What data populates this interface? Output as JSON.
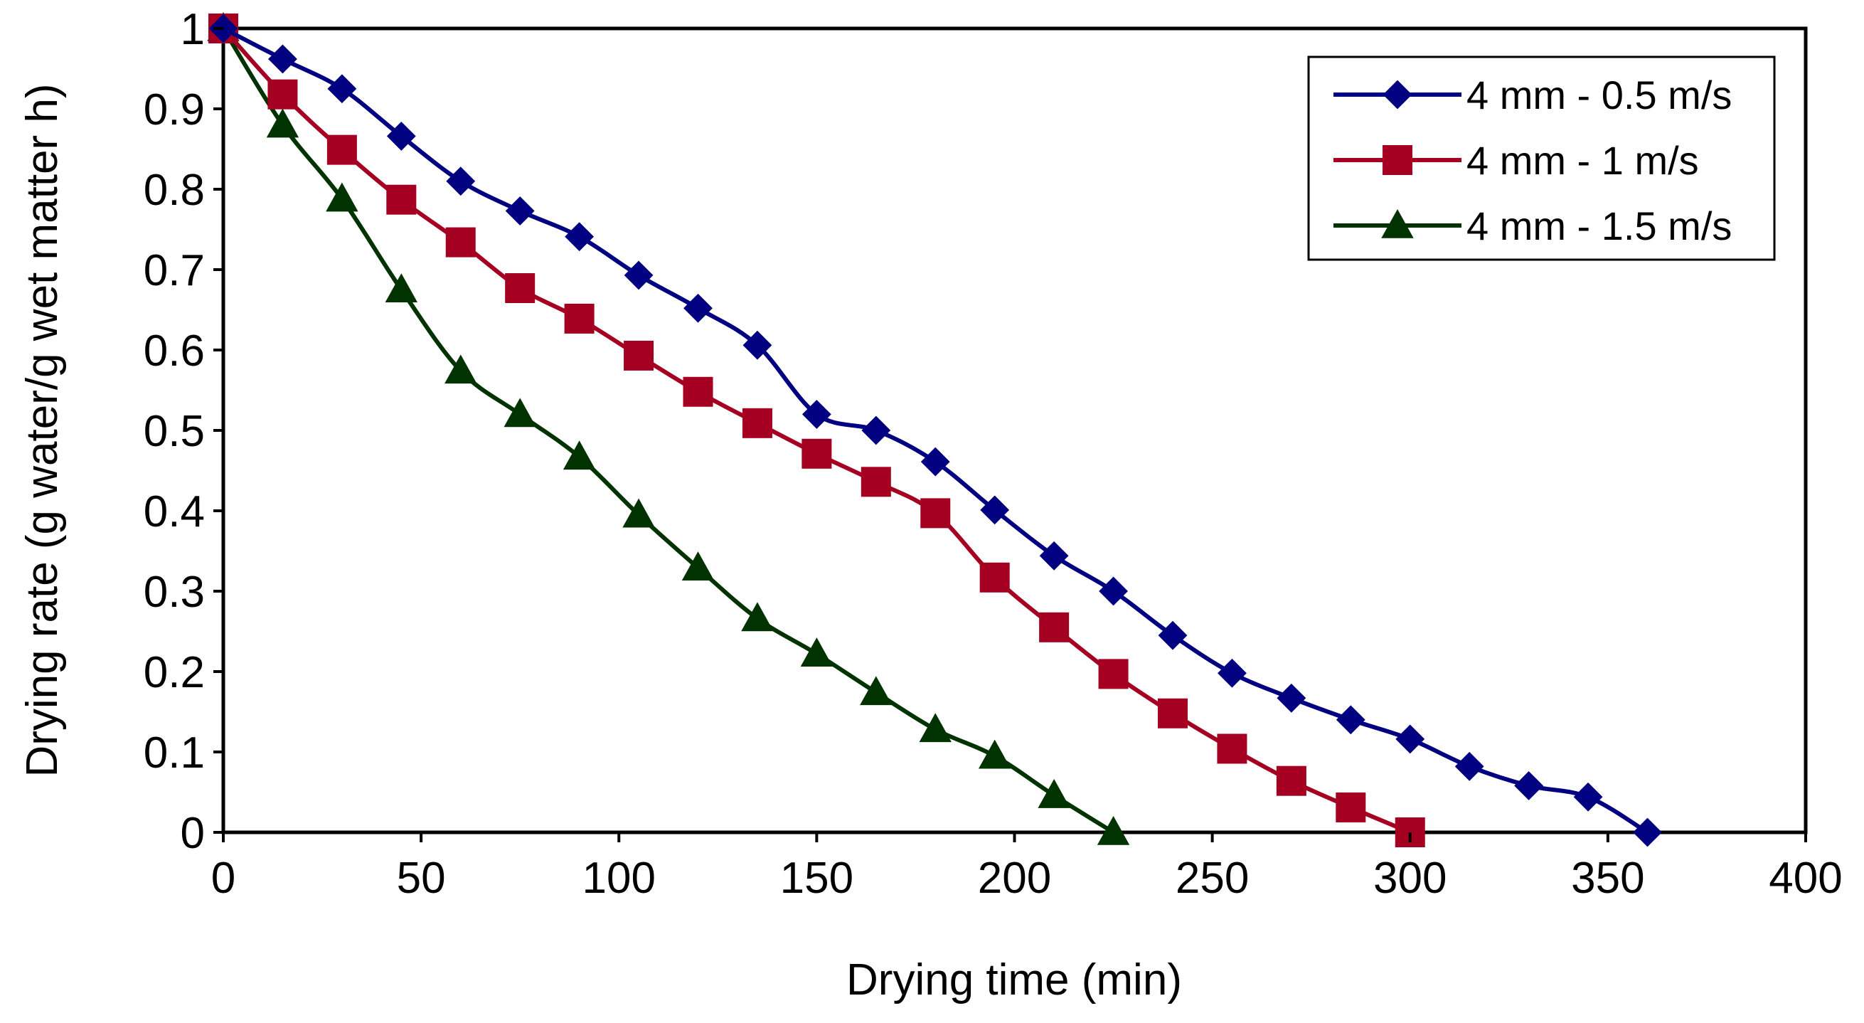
{
  "chart_data": {
    "type": "line",
    "title": "",
    "xlabel": "Drying time (min)",
    "ylabel": "Drying rate (g water/g wet matter h)",
    "xlim": [
      0,
      400
    ],
    "ylim": [
      0,
      1
    ],
    "xticks": [
      0,
      50,
      100,
      150,
      200,
      250,
      300,
      350,
      400
    ],
    "yticks": [
      0,
      0.1,
      0.2,
      0.3,
      0.4,
      0.5,
      0.6,
      0.7,
      0.8,
      0.9,
      1
    ],
    "ytick_labels": [
      "0",
      "0.1",
      "0.2",
      "0.3",
      "0.4",
      "0.5",
      "0.6",
      "0.7",
      "0.8",
      "0.9",
      "1"
    ],
    "xtick_labels": [
      "0",
      "50",
      "100",
      "150",
      "200",
      "250",
      "300",
      "350",
      "400"
    ],
    "grid": false,
    "legend_position": "top-right",
    "series": [
      {
        "name": "4 mm - 0.5 m/s",
        "color": "#000080",
        "marker": "diamond",
        "x": [
          0,
          15,
          30,
          45,
          60,
          75,
          90,
          105,
          120,
          135,
          150,
          165,
          180,
          195,
          210,
          225,
          240,
          255,
          270,
          285,
          300,
          315,
          330,
          345,
          360
        ],
        "y": [
          1.0,
          0.962,
          0.925,
          0.866,
          0.81,
          0.773,
          0.741,
          0.693,
          0.652,
          0.606,
          0.52,
          0.5,
          0.461,
          0.401,
          0.344,
          0.3,
          0.245,
          0.198,
          0.167,
          0.14,
          0.116,
          0.082,
          0.058,
          0.044,
          0.0
        ]
      },
      {
        "name": "4 mm - 1 m/s",
        "color": "#a50021",
        "marker": "square",
        "x": [
          0,
          15,
          30,
          45,
          60,
          75,
          90,
          105,
          120,
          135,
          150,
          165,
          180,
          195,
          210,
          225,
          240,
          255,
          270,
          285,
          300
        ],
        "y": [
          1.0,
          0.918,
          0.849,
          0.787,
          0.734,
          0.677,
          0.639,
          0.593,
          0.548,
          0.509,
          0.471,
          0.436,
          0.397,
          0.317,
          0.255,
          0.197,
          0.148,
          0.104,
          0.064,
          0.031,
          0.0
        ]
      },
      {
        "name": "4 mm - 1.5 m/s",
        "color": "#003300",
        "marker": "triangle",
        "x": [
          0,
          15,
          30,
          45,
          60,
          75,
          90,
          105,
          120,
          135,
          150,
          165,
          180,
          195,
          210,
          225
        ],
        "y": [
          1.0,
          0.88,
          0.788,
          0.675,
          0.574,
          0.52,
          0.467,
          0.395,
          0.329,
          0.266,
          0.222,
          0.174,
          0.128,
          0.095,
          0.046,
          0.0
        ]
      }
    ]
  }
}
